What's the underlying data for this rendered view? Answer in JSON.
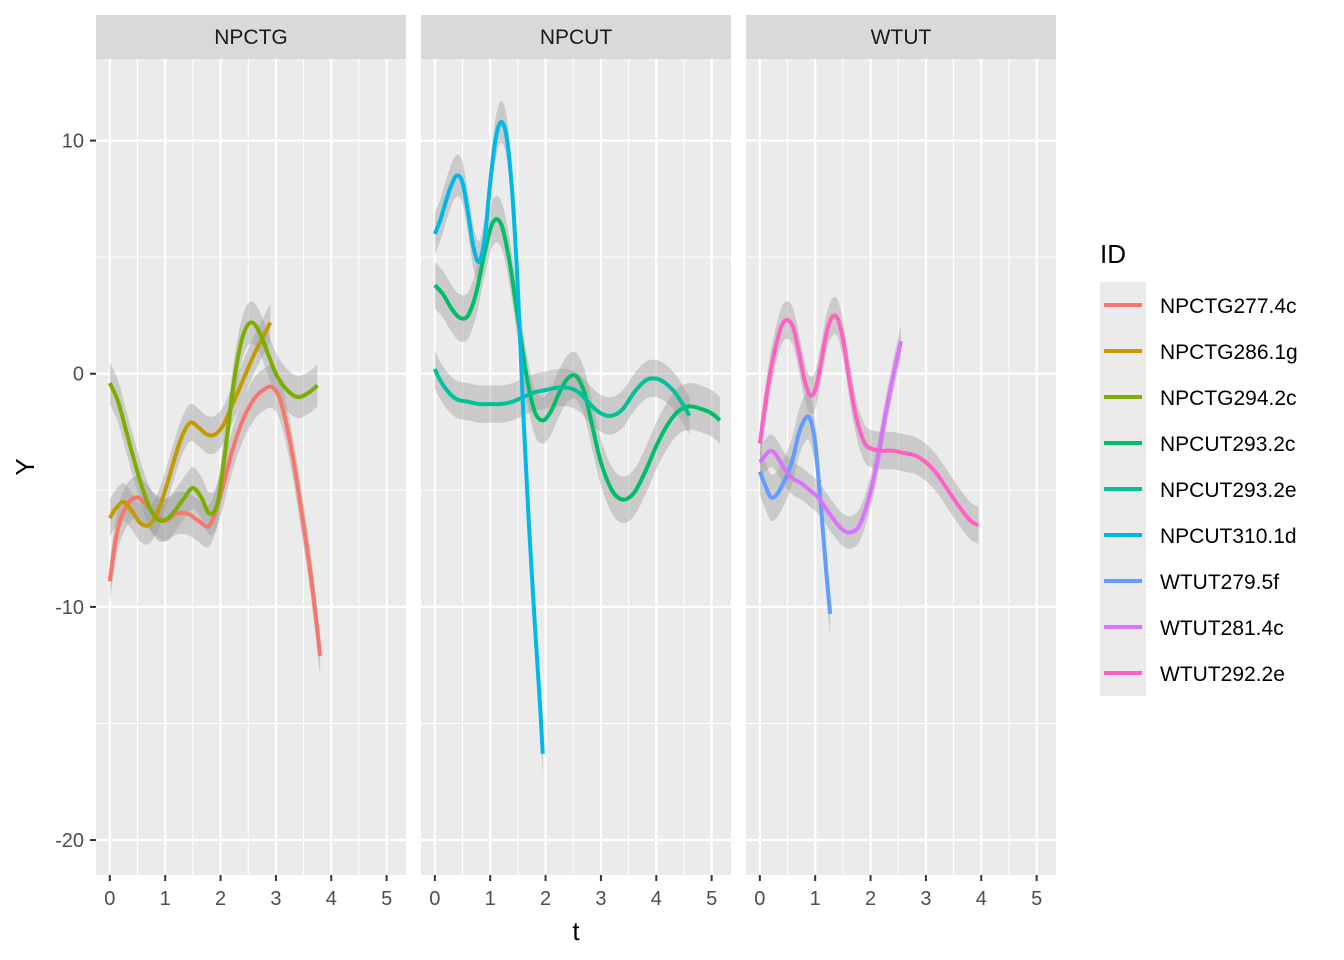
{
  "chart_data": {
    "type": "line",
    "xlabel": "t",
    "ylabel": "Y",
    "xlim": [
      -0.25,
      5.35
    ],
    "ylim": [
      -21.5,
      13.5
    ],
    "x_ticks": [
      0,
      1,
      2,
      3,
      4,
      5
    ],
    "y_ticks": [
      10,
      0,
      -10,
      -20
    ],
    "y_tick_labels": [
      "10",
      "0",
      "-10",
      "-20"
    ],
    "grid": true,
    "legend": {
      "title": "ID",
      "position": "right"
    },
    "panels": [
      {
        "label": "NPCTG",
        "series": [
          {
            "name": "NPCTG277.4c",
            "color": "#F8766D",
            "x": [
              0,
              0.1,
              0.2,
              0.35,
              0.5,
              0.65,
              0.8,
              1.0,
              1.2,
              1.4,
              1.6,
              1.8,
              2.0,
              2.2,
              2.4,
              2.6,
              2.8,
              2.95,
              3.1,
              3.3,
              3.5,
              3.65,
              3.8
            ],
            "y": [
              -8.9,
              -7.2,
              -6.2,
              -5.5,
              -5.3,
              -5.6,
              -6.0,
              -6.3,
              -6.0,
              -6.0,
              -6.3,
              -6.5,
              -5.2,
              -3.4,
              -2.0,
              -1.1,
              -0.65,
              -0.6,
              -1.3,
              -3.5,
              -6.5,
              -9.0,
              -12.1
            ],
            "band": 0.9
          },
          {
            "name": "NPCTG286.1g",
            "color": "#C49A00",
            "x": [
              0,
              0.1,
              0.25,
              0.4,
              0.55,
              0.7,
              0.85,
              1.0,
              1.15,
              1.3,
              1.45,
              1.6,
              1.75,
              1.9,
              2.05,
              2.2,
              2.4,
              2.6,
              2.75,
              2.9
            ],
            "y": [
              -6.2,
              -5.8,
              -5.5,
              -5.9,
              -6.4,
              -6.5,
              -6.0,
              -5.0,
              -3.8,
              -2.7,
              -2.1,
              -2.3,
              -2.6,
              -2.6,
              -2.2,
              -1.4,
              -0.3,
              0.8,
              1.5,
              2.2
            ],
            "band": 0.8
          },
          {
            "name": "NPCTG294.2c",
            "color": "#7CAE00",
            "x": [
              0,
              0.15,
              0.3,
              0.45,
              0.6,
              0.75,
              0.9,
              1.05,
              1.2,
              1.35,
              1.5,
              1.65,
              1.8,
              1.95,
              2.1,
              2.25,
              2.4,
              2.55,
              2.7,
              2.85,
              3.0,
              3.2,
              3.4,
              3.6,
              3.75
            ],
            "y": [
              -0.4,
              -1.2,
              -2.5,
              -3.8,
              -5.0,
              -5.9,
              -6.3,
              -6.2,
              -5.8,
              -5.3,
              -4.9,
              -5.3,
              -6.0,
              -5.5,
              -3.0,
              -0.2,
              1.6,
              2.2,
              1.8,
              0.9,
              0.0,
              -0.7,
              -1.0,
              -0.8,
              -0.5
            ],
            "band": 0.9
          }
        ]
      },
      {
        "label": "NPCUT",
        "series": [
          {
            "name": "NPCUT293.2c",
            "color": "#00BE67",
            "x": [
              0,
              0.15,
              0.3,
              0.45,
              0.6,
              0.75,
              0.9,
              1.05,
              1.2,
              1.35,
              1.5,
              1.65,
              1.8,
              1.95,
              2.1,
              2.25,
              2.4,
              2.55,
              2.7,
              2.85,
              3.0,
              3.2,
              3.4,
              3.6,
              3.8,
              4.0,
              4.2,
              4.4,
              4.6,
              4.8,
              5.0,
              5.15
            ],
            "y": [
              3.8,
              3.4,
              2.8,
              2.4,
              2.5,
              3.5,
              5.2,
              6.5,
              6.4,
              4.8,
              2.4,
              0.0,
              -1.6,
              -2.0,
              -1.6,
              -0.8,
              -0.2,
              -0.1,
              -0.8,
              -2.3,
              -3.8,
              -5.0,
              -5.4,
              -5.1,
              -4.2,
              -3.1,
              -2.2,
              -1.6,
              -1.4,
              -1.5,
              -1.7,
              -2.0
            ],
            "band": 1.0
          },
          {
            "name": "NPCUT293.2e",
            "color": "#00C19A",
            "x": [
              0,
              0.1,
              0.25,
              0.4,
              0.6,
              0.8,
              1.0,
              1.2,
              1.4,
              1.6,
              1.8,
              2.0,
              2.2,
              2.4,
              2.6,
              2.8,
              3.0,
              3.2,
              3.4,
              3.6,
              3.8,
              3.95,
              4.1,
              4.3,
              4.45,
              4.6
            ],
            "y": [
              0.2,
              -0.3,
              -0.8,
              -1.1,
              -1.2,
              -1.3,
              -1.3,
              -1.3,
              -1.2,
              -1.0,
              -0.8,
              -0.7,
              -0.6,
              -0.6,
              -0.8,
              -1.3,
              -1.7,
              -1.8,
              -1.5,
              -0.8,
              -0.3,
              -0.2,
              -0.3,
              -0.7,
              -1.2,
              -1.8
            ],
            "band": 0.8
          },
          {
            "name": "NPCUT310.1d",
            "color": "#00B8E7",
            "x": [
              0,
              0.1,
              0.2,
              0.3,
              0.4,
              0.5,
              0.6,
              0.7,
              0.8,
              0.9,
              1.0,
              1.1,
              1.2,
              1.3,
              1.4,
              1.5,
              1.6,
              1.7,
              1.8,
              1.9,
              1.95
            ],
            "y": [
              6.0,
              6.6,
              7.4,
              8.1,
              8.5,
              8.2,
              6.9,
              5.4,
              4.8,
              5.8,
              8.2,
              10.1,
              10.8,
              10.1,
              7.7,
              3.6,
              -1.8,
              -6.5,
              -10.5,
              -14.2,
              -16.3
            ],
            "band": 0.9
          }
        ]
      },
      {
        "label": "WTUT",
        "series": [
          {
            "name": "WTUT279.5f",
            "color": "#619CFF",
            "x": [
              0,
              0.1,
              0.2,
              0.3,
              0.4,
              0.5,
              0.6,
              0.7,
              0.8,
              0.9,
              1.0,
              1.1,
              1.2,
              1.27
            ],
            "y": [
              -4.2,
              -4.8,
              -5.3,
              -5.2,
              -4.8,
              -4.3,
              -3.6,
              -2.6,
              -2.0,
              -1.9,
              -3.0,
              -5.6,
              -8.5,
              -10.3
            ],
            "band": 1.0
          },
          {
            "name": "WTUT281.4c",
            "color": "#DB72FB",
            "x": [
              0,
              0.1,
              0.2,
              0.3,
              0.45,
              0.6,
              0.75,
              0.9,
              1.05,
              1.2,
              1.35,
              1.5,
              1.65,
              1.8,
              1.95,
              2.1,
              2.25,
              2.4,
              2.55
            ],
            "y": [
              -3.8,
              -3.5,
              -3.3,
              -3.5,
              -4.1,
              -4.5,
              -4.7,
              -5.0,
              -5.3,
              -5.8,
              -6.3,
              -6.7,
              -6.8,
              -6.5,
              -5.5,
              -4.0,
              -2.0,
              -0.2,
              1.4
            ],
            "band": 0.7
          },
          {
            "name": "WTUT292.2e",
            "color": "#FF61C3",
            "x": [
              0,
              0.1,
              0.2,
              0.3,
              0.4,
              0.5,
              0.6,
              0.7,
              0.8,
              0.9,
              1.0,
              1.1,
              1.2,
              1.3,
              1.4,
              1.5,
              1.6,
              1.7,
              1.8,
              1.9,
              2.0,
              2.2,
              2.4,
              2.6,
              2.8,
              3.0,
              3.2,
              3.4,
              3.6,
              3.8,
              3.95
            ],
            "y": [
              -3.0,
              -1.3,
              0.2,
              1.3,
              2.1,
              2.3,
              2.0,
              1.0,
              -0.2,
              -0.9,
              -0.7,
              0.4,
              1.7,
              2.4,
              2.4,
              1.5,
              0.0,
              -1.4,
              -2.4,
              -3.0,
              -3.2,
              -3.3,
              -3.3,
              -3.4,
              -3.5,
              -3.8,
              -4.3,
              -5.0,
              -5.7,
              -6.3,
              -6.5
            ],
            "band": 0.8
          }
        ]
      }
    ]
  }
}
